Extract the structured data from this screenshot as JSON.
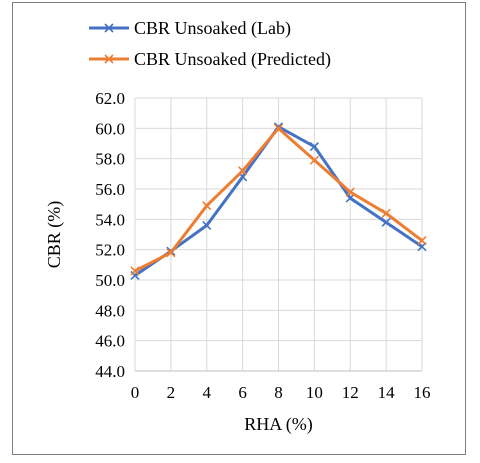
{
  "chart_data": {
    "type": "line",
    "title": "",
    "xlabel": "RHA (%)",
    "ylabel": "CBR (%)",
    "x": [
      0,
      2,
      4,
      6,
      8,
      10,
      12,
      14,
      16
    ],
    "x_tick_labels": [
      "0",
      "2",
      "4",
      "6",
      "8",
      "10",
      "12",
      "14",
      "16"
    ],
    "ylim": [
      44.0,
      62.0
    ],
    "y_ticks": [
      44.0,
      46.0,
      48.0,
      50.0,
      52.0,
      54.0,
      56.0,
      58.0,
      60.0,
      62.0
    ],
    "y_tick_labels": [
      "44.0",
      "46.0",
      "48.0",
      "50.0",
      "52.0",
      "54.0",
      "56.0",
      "58.0",
      "60.0",
      "62.0"
    ],
    "grid": "both",
    "legend_position": "top",
    "series": [
      {
        "name": "CBR Unsoaked (Lab)",
        "color": "#4472c4",
        "marker": "x",
        "values": [
          50.3,
          51.9,
          53.6,
          56.8,
          60.1,
          58.8,
          55.4,
          53.8,
          52.2
        ]
      },
      {
        "name": "CBR Unsoaked (Predicted)",
        "color": "#ed7d31",
        "marker": "x",
        "values": [
          50.6,
          51.8,
          54.9,
          57.2,
          60.0,
          57.9,
          55.8,
          54.4,
          52.6
        ]
      }
    ]
  }
}
